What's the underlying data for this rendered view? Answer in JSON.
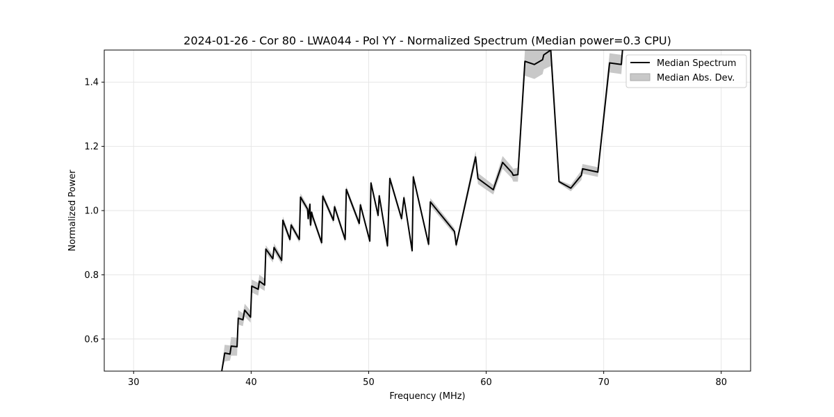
{
  "chart_data": {
    "type": "line",
    "title": "2024-01-26 - Cor 80 - LWA044 - Pol YY - Normalized Spectrum (Median power=0.3 CPU)",
    "xlabel": "Frequency (MHz)",
    "ylabel": "Normalized Power",
    "xlim": [
      27.5,
      82.5
    ],
    "ylim": [
      0.5,
      1.5
    ],
    "xticks": [
      30,
      40,
      50,
      60,
      70,
      80
    ],
    "yticks": [
      0.6,
      0.8,
      1.0,
      1.2,
      1.4
    ],
    "xtick_labels": [
      "30",
      "40",
      "50",
      "60",
      "70",
      "80"
    ],
    "ytick_labels": [
      "0.6",
      "0.8",
      "1.0",
      "1.2",
      "1.4"
    ],
    "grid": true,
    "legend_position": "top-right",
    "series": [
      {
        "name": "Median Spectrum",
        "kind": "line",
        "color": "#000000",
        "x": [
          37.5,
          37.75,
          37.8,
          38.2,
          38.3,
          38.8,
          38.9,
          39.3,
          39.45,
          39.95,
          40.05,
          40.6,
          40.7,
          41.15,
          41.25,
          41.85,
          41.95,
          42.6,
          42.7,
          43.3,
          43.4,
          44.1,
          44.2,
          44.8,
          44.85,
          45.0,
          45.05,
          45.15,
          45.25,
          46.0,
          46.1,
          47.0,
          47.1,
          48.0,
          48.1,
          49.2,
          49.3,
          50.1,
          50.2,
          50.8,
          50.9,
          51.6,
          51.8,
          52.8,
          53.0,
          53.7,
          53.8,
          55.1,
          55.25,
          57.3,
          57.45,
          59.1,
          59.3,
          60.6,
          61.4,
          62.2,
          62.3,
          62.7,
          63.3,
          64.1,
          64.8,
          64.9,
          65.5,
          66.2,
          67.2,
          68.1,
          68.2,
          69.5,
          70.5,
          71.5,
          71.6
        ],
        "y": [
          0.5,
          0.556,
          0.556,
          0.553,
          0.578,
          0.576,
          0.665,
          0.66,
          0.69,
          0.668,
          0.765,
          0.755,
          0.78,
          0.768,
          0.88,
          0.85,
          0.885,
          0.845,
          0.97,
          0.91,
          0.955,
          0.91,
          1.042,
          1.005,
          0.975,
          1.02,
          0.955,
          0.995,
          0.98,
          0.9,
          1.045,
          0.97,
          1.012,
          0.91,
          1.066,
          0.96,
          1.018,
          0.905,
          1.086,
          0.985,
          1.046,
          0.89,
          1.1,
          0.975,
          1.04,
          0.875,
          1.105,
          0.895,
          1.027,
          0.935,
          0.893,
          1.167,
          1.1,
          1.065,
          1.15,
          1.118,
          1.11,
          1.112,
          1.465,
          1.455,
          1.47,
          1.485,
          1.5,
          1.09,
          1.07,
          1.11,
          1.13,
          1.12,
          1.46,
          1.455,
          1.5
        ]
      },
      {
        "name": "Median Abs. Dev.",
        "kind": "band",
        "color": "#c8c8c8",
        "x": [
          37.5,
          37.75,
          38.2,
          38.3,
          38.8,
          38.9,
          39.3,
          39.45,
          39.95,
          40.05,
          40.6,
          40.7,
          41.15,
          41.25,
          41.85,
          41.95,
          42.6,
          42.7,
          43.3,
          43.4,
          44.1,
          44.2,
          44.8,
          45.05,
          45.25,
          46.0,
          46.1,
          47.0,
          47.1,
          48.0,
          48.1,
          49.2,
          49.3,
          50.1,
          50.2,
          50.8,
          50.9,
          51.6,
          51.8,
          52.8,
          53.0,
          53.7,
          53.8,
          55.1,
          55.25,
          57.3,
          57.45,
          59.1,
          59.3,
          60.6,
          61.4,
          62.2,
          62.3,
          62.7,
          63.3,
          64.1,
          64.8,
          64.9,
          65.5,
          66.2,
          67.2,
          68.1,
          68.2,
          69.5,
          70.5,
          71.5,
          71.6
        ],
        "lower": [
          0.5,
          0.53,
          0.533,
          0.548,
          0.548,
          0.645,
          0.64,
          0.67,
          0.651,
          0.745,
          0.735,
          0.76,
          0.75,
          0.868,
          0.838,
          0.872,
          0.833,
          0.958,
          0.9,
          0.945,
          0.9,
          1.03,
          0.995,
          0.945,
          0.97,
          0.89,
          1.035,
          0.96,
          1.002,
          0.9,
          1.056,
          0.95,
          1.008,
          0.895,
          1.076,
          0.975,
          1.036,
          0.88,
          1.09,
          0.965,
          1.03,
          0.865,
          1.095,
          0.885,
          1.015,
          0.925,
          0.883,
          1.15,
          1.083,
          1.05,
          1.13,
          1.1,
          1.09,
          1.09,
          1.42,
          1.41,
          1.425,
          1.44,
          1.45,
          1.085,
          1.06,
          1.095,
          1.115,
          1.105,
          1.43,
          1.425,
          1.47
        ],
        "upper": [
          0.51,
          0.582,
          0.58,
          0.606,
          0.604,
          0.69,
          0.68,
          0.71,
          0.688,
          0.785,
          0.775,
          0.8,
          0.788,
          0.892,
          0.862,
          0.898,
          0.857,
          0.982,
          0.92,
          0.965,
          0.92,
          1.054,
          1.015,
          0.965,
          0.99,
          0.91,
          1.055,
          0.98,
          1.022,
          0.92,
          1.076,
          0.97,
          1.028,
          0.915,
          1.096,
          0.995,
          1.056,
          0.9,
          1.11,
          0.985,
          1.05,
          0.885,
          1.115,
          0.905,
          1.039,
          0.945,
          0.903,
          1.185,
          1.117,
          1.08,
          1.17,
          1.136,
          1.13,
          1.134,
          1.5,
          1.5,
          1.5,
          1.5,
          1.5,
          1.095,
          1.08,
          1.125,
          1.145,
          1.135,
          1.49,
          1.485,
          1.5
        ]
      }
    ]
  }
}
